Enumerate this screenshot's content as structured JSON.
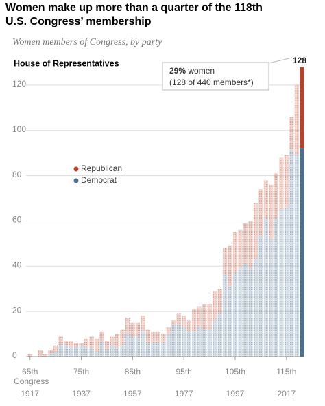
{
  "chart_data": {
    "type": "stacked_bar",
    "title": [
      "Women make up more than a quarter of the 118th",
      "U.S. Congress’ membership"
    ],
    "subtitle": "Women members of Congress, by party",
    "panel_title": "House of Representatives",
    "categories": [
      "65th",
      null,
      null,
      null,
      null,
      null,
      null,
      null,
      null,
      null,
      "75th",
      null,
      null,
      null,
      null,
      null,
      null,
      null,
      null,
      null,
      "85th",
      null,
      null,
      null,
      null,
      null,
      null,
      null,
      null,
      null,
      "95th",
      null,
      null,
      null,
      null,
      null,
      null,
      null,
      null,
      null,
      "105th",
      null,
      null,
      null,
      null,
      null,
      null,
      null,
      null,
      null,
      "115th",
      null,
      null,
      null
    ],
    "xlabel": "Congress",
    "years": [
      1917,
      null,
      null,
      null,
      null,
      null,
      null,
      null,
      null,
      null,
      1937,
      null,
      null,
      null,
      null,
      null,
      null,
      null,
      null,
      null,
      1957,
      null,
      null,
      null,
      null,
      null,
      null,
      null,
      null,
      null,
      1977,
      null,
      null,
      null,
      null,
      null,
      null,
      null,
      null,
      null,
      1997,
      null,
      null,
      null,
      null,
      null,
      null,
      null,
      null,
      null,
      2017,
      null,
      null,
      null
    ],
    "series": [
      {
        "name": "Democrat",
        "color": "#4c6f8f",
        "values": [
          0,
          0,
          0,
          0,
          1,
          2,
          5,
          5,
          4,
          4,
          5,
          4,
          4,
          2,
          6,
          3,
          5,
          4,
          5,
          10,
          9,
          9,
          11,
          6,
          6,
          6,
          6,
          10,
          14,
          14,
          13,
          11,
          11,
          13,
          12,
          12,
          16,
          19,
          36,
          31,
          37,
          39,
          41,
          39,
          43,
          53,
          61,
          52,
          61,
          65,
          66,
          91,
          89,
          92
        ]
      },
      {
        "name": "Republican",
        "color": "#b5442f",
        "values": [
          1,
          0,
          3,
          1,
          2,
          3,
          4,
          2,
          3,
          2,
          1,
          4,
          5,
          6,
          5,
          4,
          4,
          6,
          7,
          7,
          6,
          6,
          7,
          6,
          5,
          5,
          4,
          3,
          2,
          5,
          5,
          5,
          10,
          9,
          11,
          11,
          13,
          11,
          12,
          18,
          18,
          17,
          18,
          21,
          25,
          21,
          17,
          24,
          20,
          23,
          23,
          15,
          31,
          36
        ]
      }
    ],
    "ylim": [
      0,
      130
    ],
    "yticks": [
      0,
      20,
      40,
      60,
      80,
      100,
      120
    ],
    "grid": true,
    "annotation": {
      "highlight": "29%",
      "text": "women",
      "detail": "(128 of 440 members*)",
      "total": 128
    }
  }
}
